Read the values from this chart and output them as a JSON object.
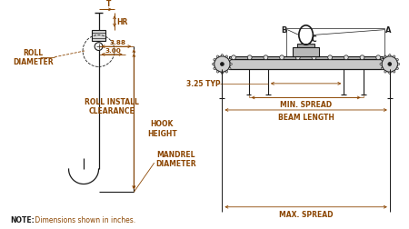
{
  "bg_color": "#ffffff",
  "line_color": "#1a1a1a",
  "dim_color": "#8B4500",
  "note_bold": "NOTE:",
  "note_rest": " Dimensions shown in inches.",
  "labels": {
    "roll_diameter": "ROLL\nDIAMETER",
    "roll_install": "ROLL INSTALL\nCLEARANCE",
    "hook_height": "HOOK\nHEIGHT",
    "mandrel": "MANDREL\nDIAMETER",
    "min_spread": "MIN. SPREAD",
    "beam_length": "BEAM LENGTH",
    "max_spread": "MAX. SPREAD",
    "typ": "3.25 TYP",
    "d388": "3.88",
    "d300": "3.00",
    "T": "T",
    "HR": "HR",
    "A": "A",
    "B": "B",
    "C": "C"
  }
}
